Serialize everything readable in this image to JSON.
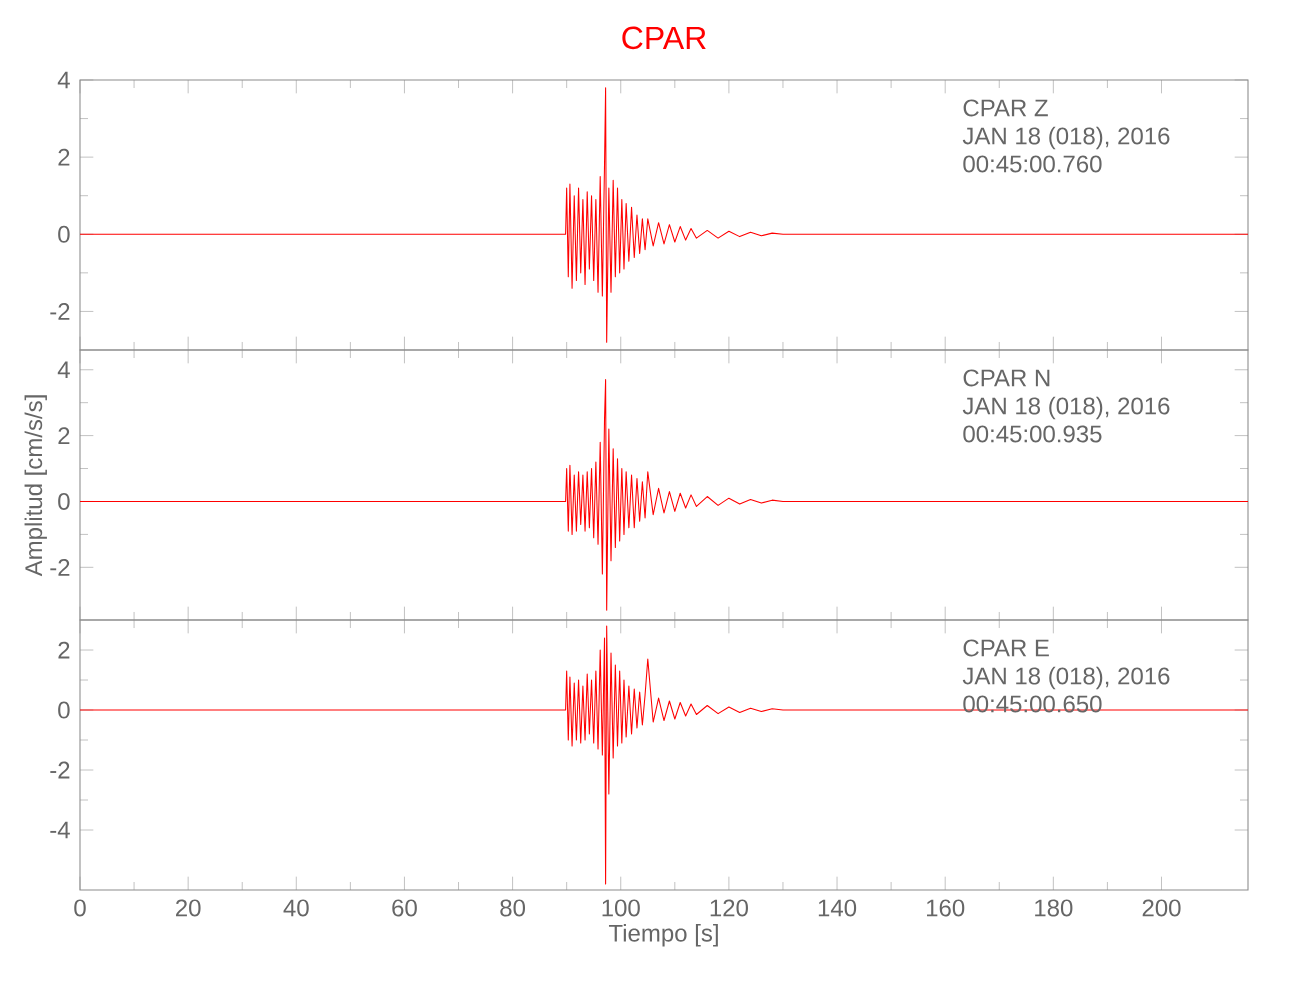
{
  "chart_data": [
    {
      "type": "line",
      "title": "CPAR",
      "annotations": [
        "CPAR   Z",
        "JAN 18 (018), 2016",
        "00:45:00.760"
      ],
      "tick_labels": "y",
      "xlim": [
        0,
        216
      ],
      "ylim": [
        -3,
        4
      ],
      "yticks": [
        -2,
        0,
        2,
        4
      ],
      "x": [
        0,
        89.8,
        90,
        90.3,
        90.6,
        91,
        91.4,
        91.8,
        92.2,
        92.6,
        93,
        93.4,
        93.8,
        94.2,
        94.6,
        95,
        95.4,
        95.8,
        96.2,
        96.6,
        97,
        97.2,
        97.4,
        97.8,
        98.2,
        98.6,
        99,
        99.4,
        99.8,
        100.2,
        100.6,
        101,
        101.5,
        102,
        102.5,
        103,
        103.5,
        104,
        104.5,
        105,
        106,
        107,
        108,
        109,
        110,
        111,
        112,
        113,
        114,
        116,
        118,
        120,
        122,
        124,
        126,
        128,
        130,
        216
      ],
      "series": [
        {
          "color": "#ff0000",
          "values": [
            0,
            0,
            1.2,
            -1.1,
            1.3,
            -1.4,
            1.0,
            -1.2,
            1.2,
            -1.0,
            0.9,
            -1.3,
            1.1,
            -0.9,
            1.0,
            -1.2,
            0.9,
            -1.5,
            1.5,
            -1.6,
            1.8,
            3.8,
            -2.8,
            1.2,
            -1.5,
            1.4,
            -1.1,
            1.2,
            -1.0,
            0.9,
            -0.9,
            0.8,
            -0.7,
            0.7,
            -0.6,
            0.5,
            -0.5,
            0.4,
            -0.4,
            0.4,
            -0.3,
            0.3,
            -0.25,
            0.25,
            -0.2,
            0.2,
            -0.15,
            0.15,
            -0.1,
            0.1,
            -0.1,
            0.08,
            -0.06,
            0.05,
            -0.04,
            0.03,
            0,
            0
          ]
        }
      ]
    },
    {
      "type": "line",
      "ylabel": "Amplitud [cm/s/s]",
      "annotations": [
        "CPAR   N",
        "JAN 18 (018), 2016",
        "00:45:00.935"
      ],
      "tick_labels": "y",
      "xlim": [
        0,
        216
      ],
      "ylim": [
        -3.6,
        4.6
      ],
      "yticks": [
        -2,
        0,
        2,
        4
      ],
      "x": [
        0,
        89.8,
        90,
        90.3,
        90.6,
        91,
        91.4,
        91.8,
        92.2,
        92.6,
        93,
        93.4,
        93.8,
        94.2,
        94.6,
        95,
        95.4,
        95.8,
        96.2,
        96.6,
        97,
        97.2,
        97.4,
        97.8,
        98.2,
        98.6,
        99,
        99.4,
        99.8,
        100.2,
        100.6,
        101,
        101.5,
        102,
        102.5,
        103,
        103.5,
        104,
        104.5,
        105,
        106,
        107,
        108,
        109,
        110,
        111,
        112,
        113,
        114,
        116,
        118,
        120,
        122,
        124,
        126,
        128,
        130,
        216
      ],
      "series": [
        {
          "color": "#ff0000",
          "values": [
            0,
            0,
            1.0,
            -0.9,
            1.1,
            -1.0,
            0.8,
            -0.9,
            0.9,
            -0.7,
            0.8,
            -0.9,
            0.9,
            -0.8,
            1.0,
            -1.1,
            1.2,
            -1.3,
            1.8,
            -2.2,
            2.5,
            3.7,
            -3.3,
            2.2,
            -1.8,
            1.6,
            -1.4,
            1.3,
            -1.2,
            1.0,
            -1.0,
            0.9,
            -0.8,
            0.8,
            -0.8,
            0.7,
            -0.6,
            0.6,
            -0.5,
            0.9,
            -0.4,
            0.4,
            -0.35,
            0.3,
            -0.3,
            0.25,
            -0.2,
            0.2,
            -0.15,
            0.15,
            -0.12,
            0.1,
            -0.08,
            0.06,
            -0.05,
            0.04,
            0,
            0
          ]
        }
      ]
    },
    {
      "type": "line",
      "xlabel": "Tiempo [s]",
      "annotations": [
        "CPAR   E",
        "JAN 18 (018), 2016",
        "00:45:00.650"
      ],
      "xlim": [
        0,
        216
      ],
      "xticks": [
        0,
        20,
        40,
        60,
        80,
        100,
        120,
        140,
        160,
        180,
        200
      ],
      "ylim": [
        -6,
        3
      ],
      "yticks": [
        -4,
        -2,
        0,
        2
      ],
      "x": [
        0,
        89.8,
        90,
        90.3,
        90.6,
        91,
        91.4,
        91.8,
        92.2,
        92.6,
        93,
        93.4,
        93.8,
        94.2,
        94.6,
        95,
        95.4,
        95.8,
        96.2,
        96.6,
        97,
        97.2,
        97.4,
        97.8,
        98.2,
        98.6,
        99,
        99.4,
        99.8,
        100.2,
        100.6,
        101,
        101.5,
        102,
        102.5,
        103,
        103.5,
        104,
        104.5,
        105,
        106,
        107,
        108,
        109,
        110,
        111,
        112,
        113,
        114,
        116,
        118,
        120,
        122,
        124,
        126,
        128,
        130,
        216
      ],
      "series": [
        {
          "color": "#ff0000",
          "values": [
            0,
            0,
            1.3,
            -1.0,
            1.1,
            -1.2,
            0.9,
            -1.0,
            1.0,
            -1.1,
            0.8,
            -1.0,
            1.2,
            -0.8,
            1.0,
            -1.1,
            1.3,
            -1.3,
            2.0,
            -1.5,
            2.4,
            -5.8,
            2.8,
            -2.8,
            1.9,
            -1.6,
            1.5,
            -1.2,
            1.3,
            -1.1,
            1.0,
            -0.9,
            0.8,
            -0.8,
            0.7,
            -0.6,
            0.6,
            -0.5,
            0.5,
            1.7,
            -0.4,
            0.4,
            -0.35,
            0.3,
            -0.3,
            0.25,
            -0.2,
            0.2,
            -0.15,
            0.15,
            -0.12,
            0.1,
            -0.08,
            0.06,
            -0.05,
            0.04,
            0,
            0
          ]
        }
      ]
    }
  ]
}
